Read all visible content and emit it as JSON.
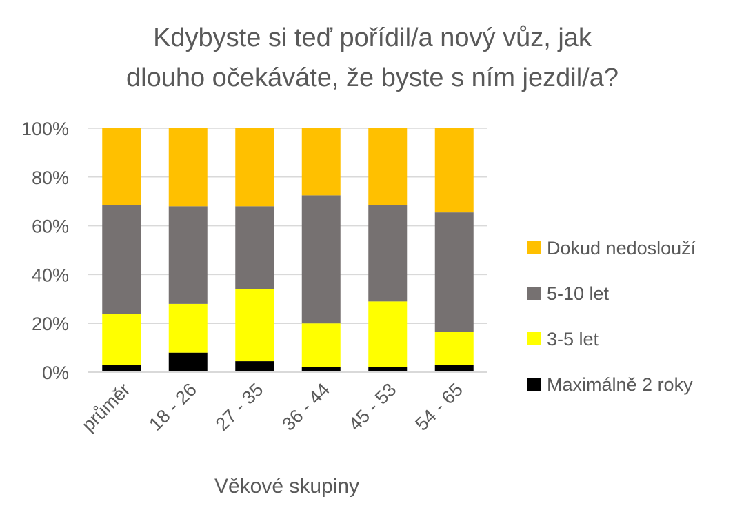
{
  "chart_data": {
    "type": "bar",
    "stacked": true,
    "normalized": true,
    "title_lines": [
      "Kdybyste si teď pořídil/a nový vůz, jak",
      "dlouho očekáváte, že byste s ním jezdil/a?"
    ],
    "xlabel": "Věkové skupiny",
    "ylabel": "",
    "categories": [
      "průměr",
      "18 - 26",
      "27 - 35",
      "36 - 44",
      "45 - 53",
      "54 - 65"
    ],
    "yticks": [
      "0%",
      "20%",
      "40%",
      "60%",
      "80%",
      "100%"
    ],
    "ylim": [
      0,
      100
    ],
    "grid": true,
    "legend_position": "right",
    "series": [
      {
        "name": "Maximálně 2 roky",
        "color": "#000000",
        "values": [
          3,
          8,
          4.5,
          2,
          2,
          3
        ]
      },
      {
        "name": "3-5 let",
        "color": "#FFFF00",
        "values": [
          21,
          20,
          29.5,
          18,
          27,
          13.5
        ]
      },
      {
        "name": "5-10 let",
        "color": "#767171",
        "values": [
          44.5,
          40,
          34,
          52.5,
          39.5,
          49
        ]
      },
      {
        "name": "Dokud nedoslouží",
        "color": "#FFC000",
        "values": [
          31.5,
          32,
          32,
          27.5,
          31.5,
          34.5
        ]
      }
    ]
  }
}
